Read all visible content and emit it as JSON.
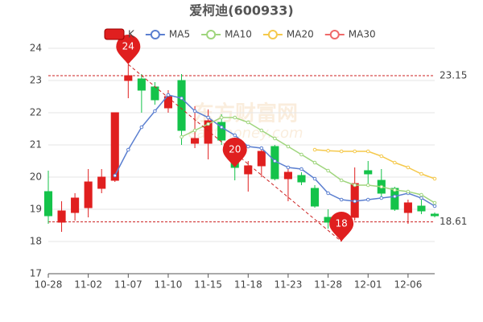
{
  "chart_data": {
    "type": "candlestick",
    "title": "爱柯迪(600933)",
    "watermark": [
      "东方财富网",
      "eastmoney.com"
    ],
    "categories": [
      "10-28",
      null,
      null,
      "11-02",
      null,
      null,
      "11-07",
      null,
      null,
      "11-10",
      null,
      null,
      "11-15",
      null,
      null,
      "11-18",
      null,
      null,
      "11-23",
      null,
      null,
      "11-28",
      null,
      null,
      "12-01",
      null,
      null,
      "12-06",
      null,
      null
    ],
    "candles": {
      "name": "K",
      "up_color": "#e01f1f",
      "down_color": "#14c34a",
      "open": [
        19.55,
        18.6,
        18.9,
        19.05,
        19.65,
        19.9,
        23.0,
        23.05,
        22.8,
        22.15,
        23.0,
        21.05,
        21.05,
        21.7,
        20.9,
        20.1,
        20.35,
        20.95,
        19.95,
        20.05,
        19.65,
        18.75,
        18.3,
        18.75,
        20.2,
        19.9,
        19.65,
        18.9,
        19.1,
        18.85
      ],
      "close": [
        18.8,
        18.95,
        19.35,
        19.85,
        20.0,
        22.0,
        23.15,
        22.7,
        22.4,
        22.5,
        21.45,
        21.2,
        21.75,
        21.15,
        20.3,
        20.35,
        20.8,
        19.95,
        20.15,
        19.85,
        19.1,
        18.6,
        18.6,
        19.8,
        20.1,
        19.5,
        19.0,
        19.2,
        18.95,
        18.8
      ],
      "high": [
        20.2,
        19.25,
        19.5,
        20.25,
        20.25,
        22.0,
        23.5,
        23.2,
        22.95,
        22.7,
        23.2,
        22.2,
        22.1,
        21.95,
        21.1,
        20.5,
        20.95,
        21.0,
        20.3,
        20.15,
        19.75,
        19.0,
        18.7,
        20.3,
        20.5,
        20.25,
        19.7,
        19.3,
        19.3,
        18.9
      ],
      "low": [
        18.55,
        18.3,
        18.65,
        18.75,
        19.5,
        19.85,
        22.45,
        22.0,
        22.25,
        22.0,
        21.0,
        20.9,
        20.55,
        21.0,
        19.9,
        19.55,
        20.0,
        19.9,
        19.25,
        19.75,
        19.05,
        18.4,
        18.0,
        18.65,
        19.75,
        19.35,
        18.95,
        18.55,
        18.85,
        18.75
      ]
    },
    "series": [
      {
        "name": "MA5",
        "color": "#5b7fd0",
        "values": [
          null,
          null,
          null,
          null,
          null,
          20.05,
          20.85,
          21.55,
          22.05,
          22.55,
          22.45,
          22.05,
          21.85,
          21.55,
          21.3,
          20.95,
          20.9,
          20.5,
          20.3,
          20.25,
          19.95,
          19.5,
          19.3,
          19.25,
          19.3,
          19.35,
          19.4,
          19.5,
          19.35,
          19.1
        ]
      },
      {
        "name": "MA10",
        "color": "#9fd57d",
        "values": [
          null,
          null,
          null,
          null,
          null,
          null,
          null,
          null,
          null,
          null,
          21.25,
          21.45,
          21.65,
          21.85,
          21.85,
          21.7,
          21.45,
          21.2,
          20.95,
          20.7,
          20.45,
          20.2,
          19.9,
          19.75,
          19.75,
          19.7,
          19.6,
          19.55,
          19.45,
          19.2
        ]
      },
      {
        "name": "MA20",
        "color": "#f5c94c",
        "values": [
          null,
          null,
          null,
          null,
          null,
          null,
          null,
          null,
          null,
          null,
          null,
          null,
          null,
          null,
          null,
          null,
          null,
          null,
          null,
          null,
          20.85,
          20.82,
          20.8,
          20.8,
          20.8,
          20.65,
          20.45,
          20.3,
          20.1,
          19.95
        ]
      },
      {
        "name": "MA30",
        "color": "#ef6a6a",
        "values": [
          null,
          null,
          null,
          null,
          null,
          null,
          null,
          null,
          null,
          null,
          null,
          null,
          null,
          null,
          null,
          null,
          null,
          null,
          null,
          null,
          null,
          null,
          null,
          null,
          null,
          null,
          null,
          null,
          null,
          null
        ]
      }
    ],
    "ref_lines": [
      23.15,
      18.61
    ],
    "markpoints": [
      {
        "label": "24",
        "x": 6,
        "y": 23.5
      },
      {
        "label": "20",
        "x": 14,
        "y": 20.3
      },
      {
        "label": "18",
        "x": 22,
        "y": 18.0
      }
    ],
    "ylim": [
      17,
      24
    ],
    "yticks": [
      17,
      18,
      19,
      20,
      21,
      22,
      23,
      24
    ],
    "grid": true
  }
}
